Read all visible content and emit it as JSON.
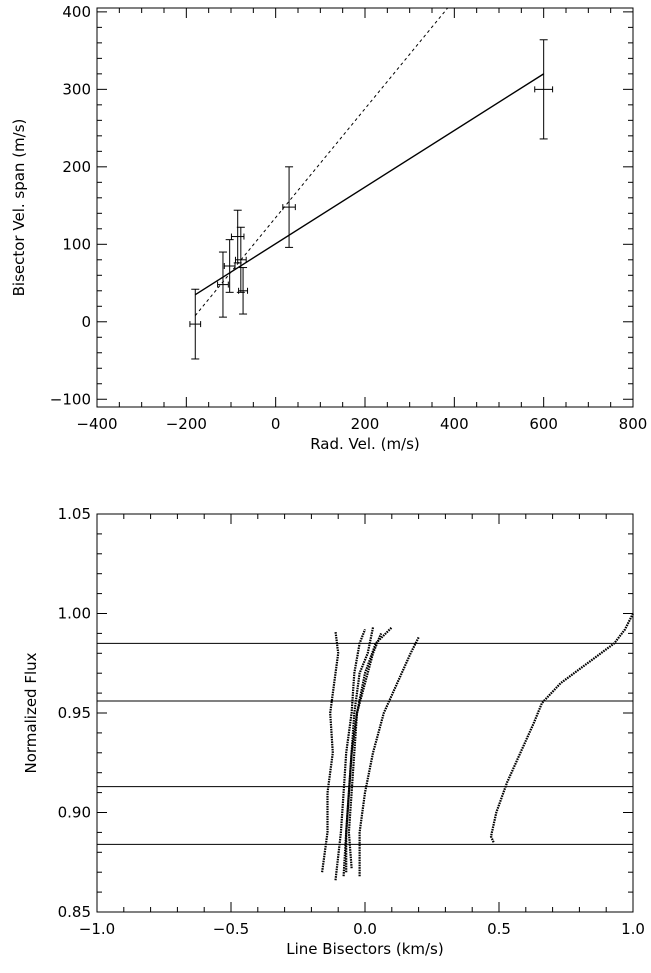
{
  "chart_data": [
    {
      "type": "scatter",
      "title": "",
      "xlabel": "Rad. Vel. (m/s)",
      "ylabel": "Bisector Vel. span (m/s)",
      "xlim": [
        -400,
        800
      ],
      "ylim": [
        -110,
        405
      ],
      "xticks": [
        -400,
        -200,
        0,
        200,
        400,
        600,
        800
      ],
      "xtick_labels": [
        "−400",
        "−200",
        "0",
        "200",
        "400",
        "600",
        "800"
      ],
      "yticks": [
        -100,
        0,
        100,
        200,
        300,
        400
      ],
      "ytick_labels": [
        "−100",
        "0",
        "100",
        "200",
        "300",
        "400"
      ],
      "grid": false,
      "points": [
        {
          "x": -180,
          "y": -3,
          "xerr": 12,
          "yerr": 45
        },
        {
          "x": -118,
          "y": 48,
          "xerr": 12,
          "yerr": 42
        },
        {
          "x": -103,
          "y": 72,
          "xerr": 12,
          "yerr": 34
        },
        {
          "x": -85,
          "y": 110,
          "xerr": 14,
          "yerr": 34
        },
        {
          "x": -78,
          "y": 80,
          "xerr": 12,
          "yerr": 42
        },
        {
          "x": -73,
          "y": 40,
          "xerr": 10,
          "yerr": 30
        },
        {
          "x": 30,
          "y": 148,
          "xerr": 14,
          "yerr": 52
        },
        {
          "x": 600,
          "y": 300,
          "xerr": 20,
          "yerr": 64
        }
      ],
      "fits": [
        {
          "style": "solid",
          "x": [
            -180,
            600
          ],
          "y": [
            35,
            320
          ]
        },
        {
          "style": "dashed",
          "x": [
            -180,
            385
          ],
          "y": [
            8,
            405
          ]
        }
      ]
    },
    {
      "type": "line",
      "title": "",
      "xlabel": "Line Bisectors (km/s)",
      "ylabel": "Normalized Flux",
      "xlim": [
        -1.0,
        1.0
      ],
      "ylim": [
        0.85,
        1.05
      ],
      "xticks": [
        -1.0,
        -0.5,
        0.0,
        0.5,
        1.0
      ],
      "xtick_labels": [
        "−1.0",
        "−0.5",
        "0.0",
        "0.5",
        "1.0"
      ],
      "yticks": [
        0.85,
        0.9,
        0.95,
        1.0,
        1.05
      ],
      "ytick_labels": [
        "0.85",
        "0.90",
        "0.95",
        "1.00",
        "1.05"
      ],
      "grid": false,
      "hlines": [
        0.985,
        0.956,
        0.913,
        0.884
      ],
      "series": [
        {
          "x": [
            -0.16,
            -0.14,
            -0.14,
            -0.12,
            -0.13,
            -0.11,
            -0.1,
            -0.11
          ],
          "y": [
            0.87,
            0.89,
            0.91,
            0.93,
            0.95,
            0.97,
            0.98,
            0.991
          ]
        },
        {
          "x": [
            -0.11,
            -0.09,
            -0.08,
            -0.07,
            -0.05,
            -0.04,
            -0.02,
            0.0
          ],
          "y": [
            0.866,
            0.89,
            0.91,
            0.93,
            0.95,
            0.97,
            0.985,
            0.992
          ]
        },
        {
          "x": [
            -0.08,
            -0.07,
            -0.06,
            -0.05,
            -0.04,
            -0.02,
            0.01,
            0.03
          ],
          "y": [
            0.868,
            0.89,
            0.91,
            0.93,
            0.95,
            0.97,
            0.98,
            0.993
          ]
        },
        {
          "x": [
            -0.07,
            -0.07,
            -0.06,
            -0.05,
            -0.03,
            0.0,
            0.04,
            0.1
          ],
          "y": [
            0.87,
            0.89,
            0.91,
            0.93,
            0.95,
            0.97,
            0.985,
            0.993
          ]
        },
        {
          "x": [
            -0.05,
            -0.06,
            -0.05,
            -0.04,
            -0.03,
            0.0,
            0.03,
            0.06
          ],
          "y": [
            0.872,
            0.89,
            0.91,
            0.93,
            0.95,
            0.965,
            0.98,
            0.99
          ]
        },
        {
          "x": [
            -0.02,
            -0.02,
            0.0,
            0.03,
            0.07,
            0.12,
            0.17,
            0.2
          ],
          "y": [
            0.868,
            0.89,
            0.91,
            0.93,
            0.95,
            0.965,
            0.98,
            0.988
          ]
        },
        {
          "x": [
            0.48,
            0.47,
            0.49,
            0.53,
            0.58,
            0.63,
            0.66,
            0.73,
            0.83,
            0.93,
            0.97,
            1.0
          ],
          "y": [
            0.885,
            0.888,
            0.9,
            0.915,
            0.93,
            0.945,
            0.955,
            0.965,
            0.975,
            0.985,
            0.992,
            1.0
          ]
        }
      ]
    }
  ]
}
